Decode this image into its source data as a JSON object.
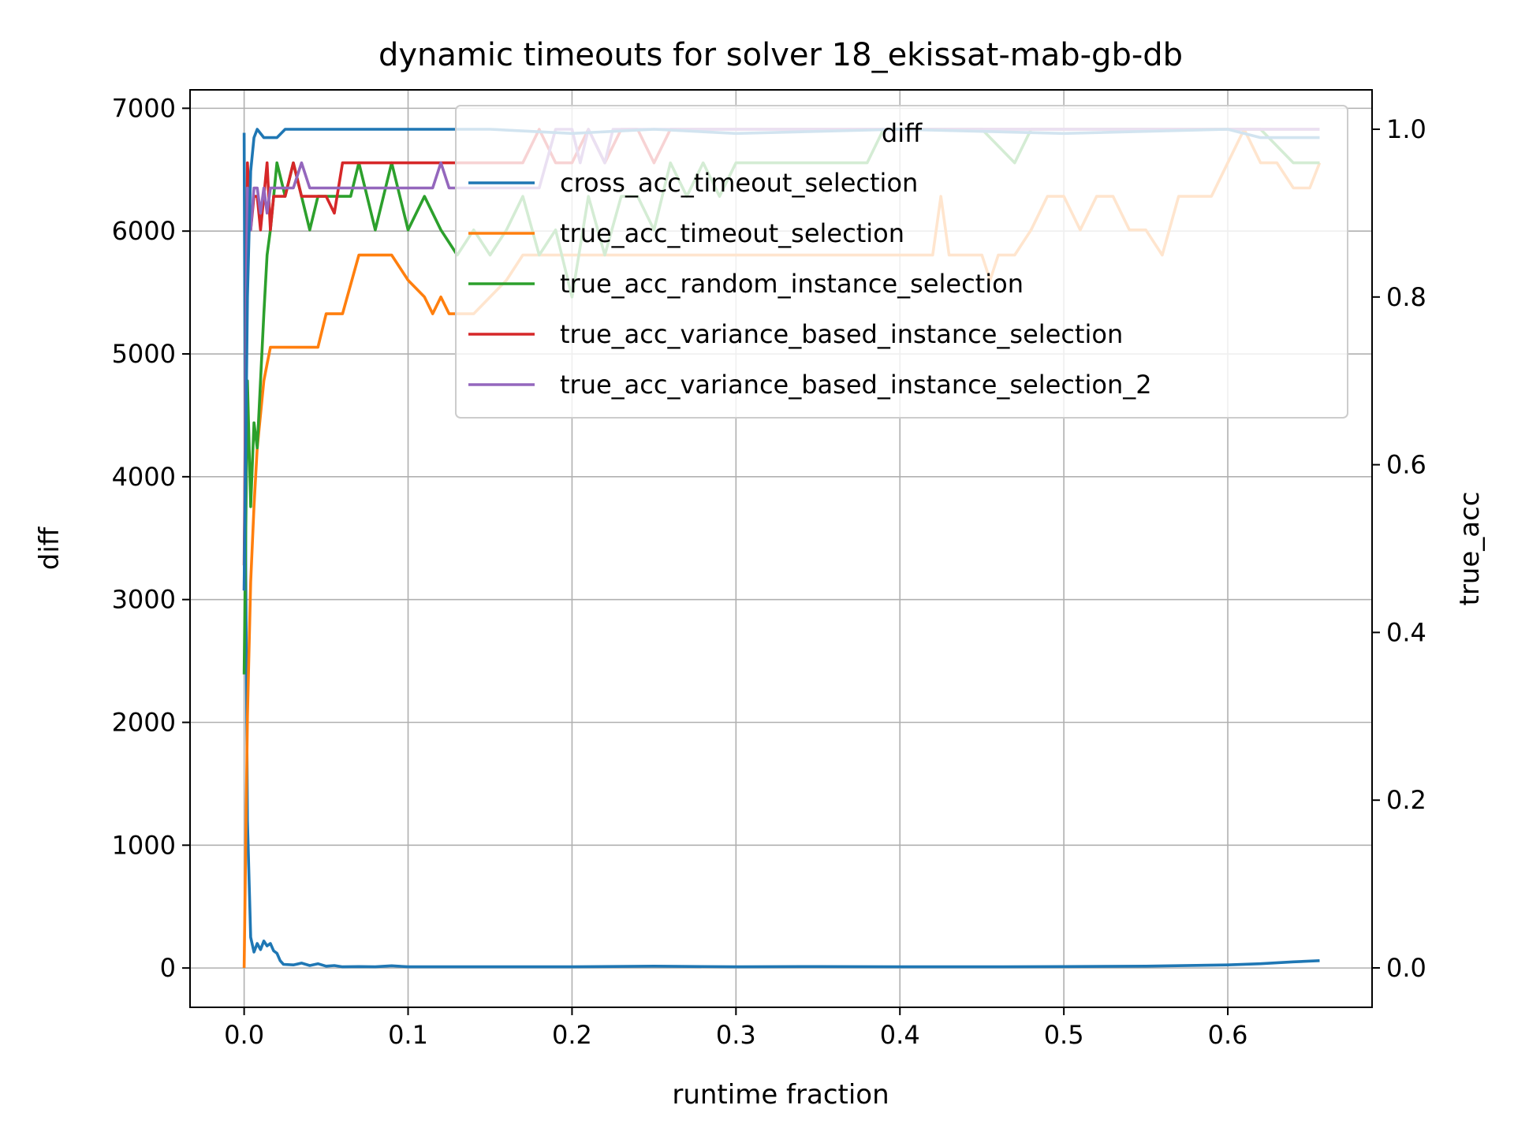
{
  "chart_data": {
    "type": "line",
    "title": "dynamic timeouts for solver 18_ekissat-mab-gb-db",
    "xlabel": "runtime fraction",
    "ylabel_left": "diff",
    "ylabel_right": "true_acc",
    "ylabel_left_color": "#008000",
    "ylabel_right_color": "#ff0000",
    "xlim": [
      -0.033,
      0.688
    ],
    "ylim_left": [
      -320,
      7150
    ],
    "ylim_right": [
      -0.047,
      1.047
    ],
    "xticks": [
      0.0,
      0.1,
      0.2,
      0.3,
      0.4,
      0.5,
      0.6
    ],
    "xtick_labels": [
      "0.0",
      "0.1",
      "0.2",
      "0.3",
      "0.4",
      "0.5",
      "0.6"
    ],
    "yticks_left": [
      0,
      1000,
      2000,
      3000,
      4000,
      5000,
      6000,
      7000
    ],
    "ytick_labels_left": [
      "0",
      "1000",
      "2000",
      "3000",
      "4000",
      "5000",
      "6000",
      "7000"
    ],
    "yticks_right": [
      0.0,
      0.2,
      0.4,
      0.6,
      0.8,
      1.0
    ],
    "ytick_labels_right": [
      "0.0",
      "0.2",
      "0.4",
      "0.6",
      "0.8",
      "1.0"
    ],
    "grid": true,
    "legend": {
      "title": "diff",
      "placement": "upper-right",
      "entries": [
        "cross_acc_timeout_selection",
        "true_acc_timeout_selection",
        "true_acc_random_instance_selection",
        "true_acc_variance_based_instance_selection",
        "true_acc_variance_based_instance_selection_2"
      ]
    },
    "series": [
      {
        "name": "diff",
        "axis": "left",
        "color": "#1f77b4",
        "x": [
          0.0,
          0.001,
          0.002,
          0.004,
          0.006,
          0.008,
          0.01,
          0.012,
          0.014,
          0.016,
          0.018,
          0.02,
          0.022,
          0.024,
          0.03,
          0.035,
          0.04,
          0.045,
          0.05,
          0.055,
          0.06,
          0.07,
          0.08,
          0.09,
          0.1,
          0.15,
          0.2,
          0.25,
          0.3,
          0.35,
          0.4,
          0.45,
          0.5,
          0.55,
          0.6,
          0.62,
          0.64,
          0.656
        ],
        "y": [
          6800,
          3200,
          1200,
          250,
          130,
          200,
          150,
          220,
          180,
          200,
          140,
          120,
          60,
          30,
          25,
          40,
          20,
          35,
          15,
          20,
          10,
          12,
          10,
          18,
          10,
          10,
          10,
          15,
          10,
          12,
          10,
          10,
          12,
          15,
          25,
          35,
          50,
          60
        ]
      },
      {
        "name": "cross_acc_timeout_selection",
        "axis": "right",
        "color": "#1f77b4",
        "x": [
          0.0,
          0.002,
          0.004,
          0.006,
          0.008,
          0.012,
          0.016,
          0.02,
          0.025,
          0.03,
          0.05,
          0.1,
          0.15,
          0.2,
          0.25,
          0.3,
          0.4,
          0.5,
          0.6,
          0.62,
          0.64,
          0.656
        ],
        "y": [
          0.45,
          0.8,
          0.95,
          0.99,
          1.0,
          0.99,
          0.99,
          0.99,
          1.0,
          1.0,
          1.0,
          1.0,
          1.0,
          0.995,
          1.0,
          0.995,
          1.0,
          0.995,
          1.0,
          0.99,
          0.99,
          0.99
        ]
      },
      {
        "name": "true_acc_timeout_selection",
        "axis": "right",
        "color": "#ff7f0e",
        "x": [
          0.0,
          0.002,
          0.004,
          0.006,
          0.008,
          0.01,
          0.012,
          0.014,
          0.016,
          0.02,
          0.025,
          0.045,
          0.05,
          0.06,
          0.07,
          0.08,
          0.09,
          0.1,
          0.11,
          0.115,
          0.12,
          0.125,
          0.13,
          0.14,
          0.15,
          0.16,
          0.17,
          0.18,
          0.19,
          0.2,
          0.22,
          0.25,
          0.3,
          0.35,
          0.4,
          0.42,
          0.425,
          0.43,
          0.45,
          0.455,
          0.46,
          0.47,
          0.48,
          0.49,
          0.5,
          0.51,
          0.52,
          0.53,
          0.54,
          0.55,
          0.56,
          0.57,
          0.58,
          0.59,
          0.6,
          0.61,
          0.62,
          0.63,
          0.64,
          0.65,
          0.656
        ],
        "y": [
          0.0,
          0.3,
          0.46,
          0.55,
          0.62,
          0.66,
          0.7,
          0.72,
          0.74,
          0.74,
          0.74,
          0.74,
          0.78,
          0.78,
          0.85,
          0.85,
          0.85,
          0.82,
          0.8,
          0.78,
          0.8,
          0.78,
          0.78,
          0.78,
          0.8,
          0.82,
          0.85,
          0.85,
          0.85,
          0.85,
          0.85,
          0.85,
          0.85,
          0.85,
          0.85,
          0.85,
          0.92,
          0.85,
          0.85,
          0.82,
          0.85,
          0.85,
          0.88,
          0.92,
          0.92,
          0.88,
          0.92,
          0.92,
          0.88,
          0.88,
          0.85,
          0.92,
          0.92,
          0.92,
          0.96,
          1.0,
          0.96,
          0.96,
          0.93,
          0.93,
          0.96
        ]
      },
      {
        "name": "true_acc_random_instance_selection",
        "axis": "right",
        "color": "#2ca02c",
        "x": [
          0.0,
          0.002,
          0.004,
          0.006,
          0.008,
          0.01,
          0.012,
          0.014,
          0.016,
          0.02,
          0.025,
          0.03,
          0.04,
          0.045,
          0.05,
          0.06,
          0.065,
          0.07,
          0.075,
          0.08,
          0.09,
          0.1,
          0.11,
          0.12,
          0.13,
          0.14,
          0.15,
          0.16,
          0.17,
          0.18,
          0.19,
          0.2,
          0.21,
          0.22,
          0.23,
          0.24,
          0.25,
          0.26,
          0.27,
          0.28,
          0.29,
          0.3,
          0.35,
          0.38,
          0.39,
          0.4,
          0.45,
          0.47,
          0.48,
          0.5,
          0.55,
          0.6,
          0.62,
          0.64,
          0.65,
          0.656
        ],
        "y": [
          0.35,
          0.7,
          0.55,
          0.65,
          0.62,
          0.7,
          0.78,
          0.85,
          0.88,
          0.96,
          0.92,
          0.96,
          0.88,
          0.92,
          0.92,
          0.92,
          0.92,
          0.96,
          0.92,
          0.88,
          0.96,
          0.88,
          0.92,
          0.88,
          0.85,
          0.88,
          0.85,
          0.88,
          0.92,
          0.85,
          0.88,
          0.8,
          0.92,
          0.85,
          0.92,
          0.92,
          0.88,
          0.96,
          0.92,
          0.96,
          0.92,
          0.96,
          0.96,
          0.96,
          1.0,
          1.0,
          1.0,
          0.96,
          1.0,
          1.0,
          1.0,
          1.0,
          1.0,
          0.96,
          0.96,
          0.96
        ]
      },
      {
        "name": "true_acc_variance_based_instance_selection",
        "axis": "right",
        "color": "#d62728",
        "x": [
          0.0,
          0.002,
          0.004,
          0.006,
          0.008,
          0.01,
          0.012,
          0.014,
          0.016,
          0.018,
          0.02,
          0.025,
          0.03,
          0.035,
          0.04,
          0.05,
          0.055,
          0.06,
          0.08,
          0.1,
          0.15,
          0.17,
          0.18,
          0.19,
          0.2,
          0.21,
          0.22,
          0.23,
          0.24,
          0.25,
          0.26,
          0.3,
          0.4,
          0.5,
          0.6,
          0.656
        ],
        "y": [
          0.48,
          0.96,
          0.88,
          0.92,
          0.92,
          0.88,
          0.92,
          0.96,
          0.88,
          0.92,
          0.92,
          0.92,
          0.96,
          0.92,
          0.92,
          0.92,
          0.9,
          0.96,
          0.96,
          0.96,
          0.96,
          0.96,
          1.0,
          0.96,
          0.96,
          1.0,
          0.96,
          1.0,
          1.0,
          0.96,
          1.0,
          1.0,
          1.0,
          1.0,
          1.0,
          1.0
        ]
      },
      {
        "name": "true_acc_variance_based_instance_selection_2",
        "axis": "right",
        "color": "#9467bd",
        "x": [
          0.0,
          0.002,
          0.004,
          0.006,
          0.008,
          0.01,
          0.012,
          0.014,
          0.016,
          0.02,
          0.025,
          0.03,
          0.035,
          0.04,
          0.05,
          0.1,
          0.115,
          0.12,
          0.125,
          0.15,
          0.18,
          0.19,
          0.2,
          0.205,
          0.21,
          0.22,
          0.225,
          0.23,
          0.24,
          0.25,
          0.3,
          0.35,
          0.4,
          0.5,
          0.6,
          0.656
        ],
        "y": [
          0.45,
          0.93,
          0.88,
          0.93,
          0.93,
          0.9,
          0.93,
          0.9,
          0.93,
          0.93,
          0.93,
          0.93,
          0.96,
          0.93,
          0.93,
          0.93,
          0.93,
          0.96,
          0.93,
          0.93,
          0.93,
          1.0,
          1.0,
          0.96,
          1.0,
          0.96,
          1.0,
          1.0,
          1.0,
          1.0,
          1.0,
          1.0,
          1.0,
          1.0,
          1.0,
          1.0
        ]
      }
    ]
  }
}
